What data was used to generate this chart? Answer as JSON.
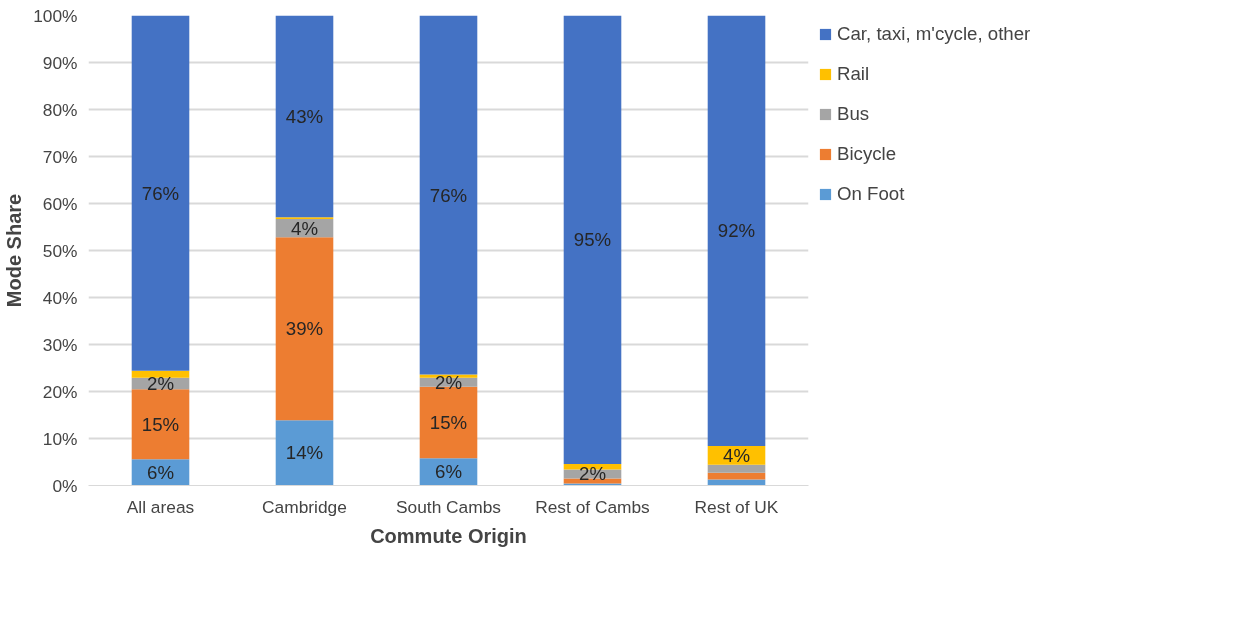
{
  "chart_data": {
    "type": "bar",
    "stacked": true,
    "xlabel": "Commute Origin",
    "ylabel": "Mode Share",
    "categories": [
      "All areas",
      "Cambridge",
      "South Cambs",
      "Rest of Cambs",
      "Rest of UK"
    ],
    "series": [
      {
        "name": "On Foot",
        "color": "#5b9bd5",
        "values": [
          5.6,
          13.9,
          5.8,
          0.4,
          1.3
        ],
        "value_labels": [
          "6%",
          "14%",
          "6%",
          null,
          null
        ]
      },
      {
        "name": "Bicycle",
        "color": "#ed7d31",
        "values": [
          14.9,
          38.9,
          15.2,
          1.1,
          1.4
        ],
        "value_labels": [
          "15%",
          "39%",
          "15%",
          null,
          null
        ]
      },
      {
        "name": "Bus",
        "color": "#a5a5a5",
        "values": [
          2.4,
          3.9,
          1.9,
          1.9,
          1.7
        ],
        "value_labels": [
          "2%",
          "4%",
          "2%",
          "2%",
          null
        ]
      },
      {
        "name": "Rail",
        "color": "#ffc000",
        "values": [
          1.5,
          0.4,
          0.7,
          1.2,
          4.0
        ],
        "value_labels": [
          null,
          null,
          null,
          null,
          "4%"
        ]
      },
      {
        "name": "Car, taxi, m'cycle, other",
        "color": "#4472c4",
        "values": [
          75.6,
          42.9,
          76.4,
          95.4,
          91.6
        ],
        "value_labels": [
          "76%",
          "43%",
          "76%",
          "95%",
          "92%"
        ]
      }
    ],
    "ylim": [
      0,
      100
    ],
    "yticks": [
      {
        "value": 0,
        "label": "0%"
      },
      {
        "value": 10,
        "label": "10%"
      },
      {
        "value": 20,
        "label": "20%"
      },
      {
        "value": 30,
        "label": "30%"
      },
      {
        "value": 40,
        "label": "40%"
      },
      {
        "value": 50,
        "label": "50%"
      },
      {
        "value": 60,
        "label": "60%"
      },
      {
        "value": 70,
        "label": "70%"
      },
      {
        "value": 80,
        "label": "80%"
      },
      {
        "value": 90,
        "label": "90%"
      },
      {
        "value": 100,
        "label": "100%"
      }
    ],
    "grid": "y",
    "legend": "right"
  }
}
